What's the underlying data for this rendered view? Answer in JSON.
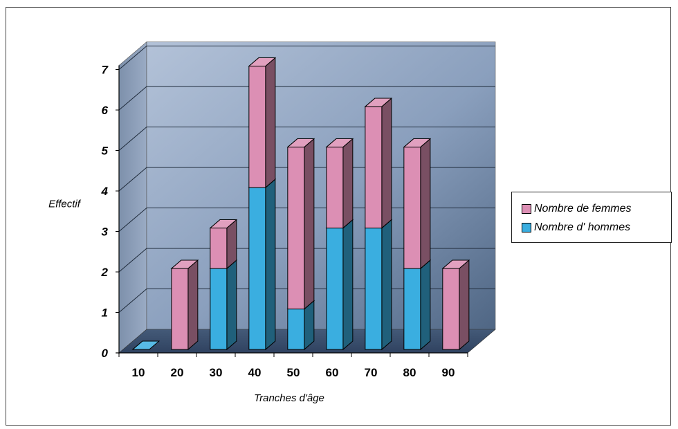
{
  "chart_data": {
    "type": "bar",
    "subtype": "stacked-3d",
    "title": "",
    "xlabel": "Tranches d'âge",
    "ylabel": "Effectif",
    "categories": [
      "10",
      "20",
      "30",
      "40",
      "50",
      "60",
      "70",
      "80",
      "90"
    ],
    "series": [
      {
        "name": "Nombre d' hommes",
        "color": "#3aaee0",
        "values": [
          0,
          0,
          2,
          4,
          1,
          3,
          3,
          2,
          0
        ]
      },
      {
        "name": "Nombre de femmes",
        "color": "#dc8fb4",
        "values": [
          0,
          2,
          1,
          3,
          4,
          2,
          3,
          3,
          2
        ]
      }
    ],
    "legend_order": [
      1,
      0
    ],
    "ylim": [
      0,
      7
    ],
    "yticks": [
      0,
      1,
      2,
      3,
      4,
      5,
      6,
      7
    ],
    "grid": true,
    "legend_position": "right"
  }
}
